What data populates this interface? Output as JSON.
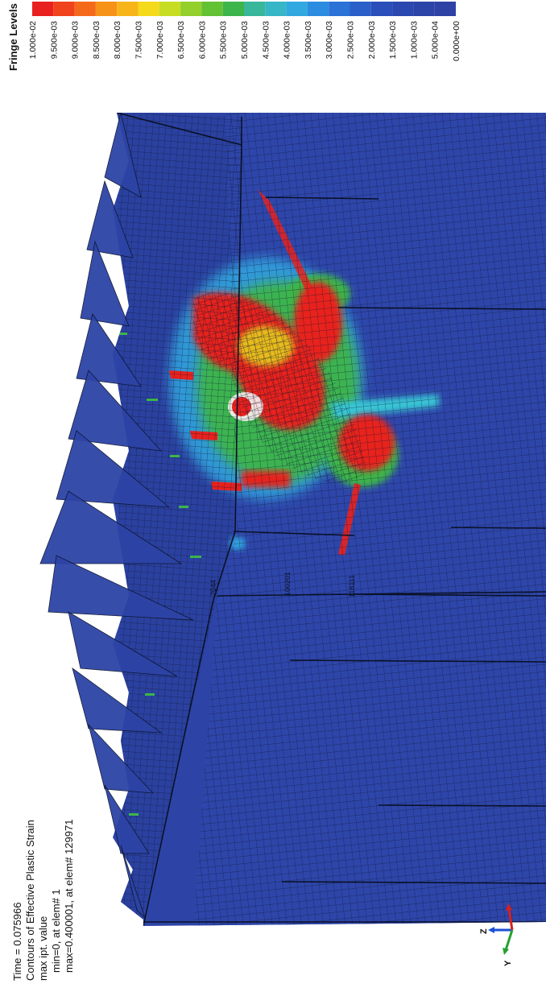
{
  "legend": {
    "title": "Fringe Levels",
    "levels": [
      {
        "label": "1.000e-02",
        "color": "#e8211e"
      },
      {
        "label": "9.500e-03",
        "color": "#f0431c"
      },
      {
        "label": "9.000e-03",
        "color": "#f46a1a"
      },
      {
        "label": "8.500e-03",
        "color": "#f79219"
      },
      {
        "label": "8.000e-03",
        "color": "#f8b51a"
      },
      {
        "label": "7.500e-03",
        "color": "#f5d91b"
      },
      {
        "label": "7.000e-03",
        "color": "#c7dd23"
      },
      {
        "label": "6.500e-03",
        "color": "#93d02b"
      },
      {
        "label": "6.000e-03",
        "color": "#62c233"
      },
      {
        "label": "5.500e-03",
        "color": "#3cb54a"
      },
      {
        "label": "5.000e-03",
        "color": "#39b79a"
      },
      {
        "label": "4.500e-03",
        "color": "#36b6c6"
      },
      {
        "label": "4.000e-03",
        "color": "#31a8e0"
      },
      {
        "label": "3.500e-03",
        "color": "#2c8ce0"
      },
      {
        "label": "3.000e-03",
        "color": "#2a72d6"
      },
      {
        "label": "2.500e-03",
        "color": "#2a5ec8"
      },
      {
        "label": "2.000e-03",
        "color": "#2a4fba"
      },
      {
        "label": "1.500e-03",
        "color": "#2b47b0"
      },
      {
        "label": "1.000e-03",
        "color": "#2c44a8"
      },
      {
        "label": "5.000e-04",
        "color": "#2d42a4"
      },
      {
        "label": "0.000e+00",
        "color": "#2d42a4"
      }
    ]
  },
  "info": {
    "time": "Time =    0.075966",
    "title": "Contours of Effective Plastic Strain",
    "line1": "max ipt. value",
    "line2": "min=0, at elem# 1",
    "line3": "max=0.400001, at elem# 129971"
  },
  "triad": {
    "z": "Z",
    "y": "Y"
  },
  "mesh_labels": [
    "2044",
    "100201",
    "118111"
  ],
  "colors": {
    "base_blue": "#2d44a6",
    "dark_blue": "#243a94",
    "mesh_line": "#0d1530",
    "red": "#e8211e",
    "orange": "#f47a1c",
    "yellow": "#e8e21c",
    "green": "#3cb54a",
    "cyan": "#39c6d6",
    "light_blue": "#31a8e0"
  }
}
